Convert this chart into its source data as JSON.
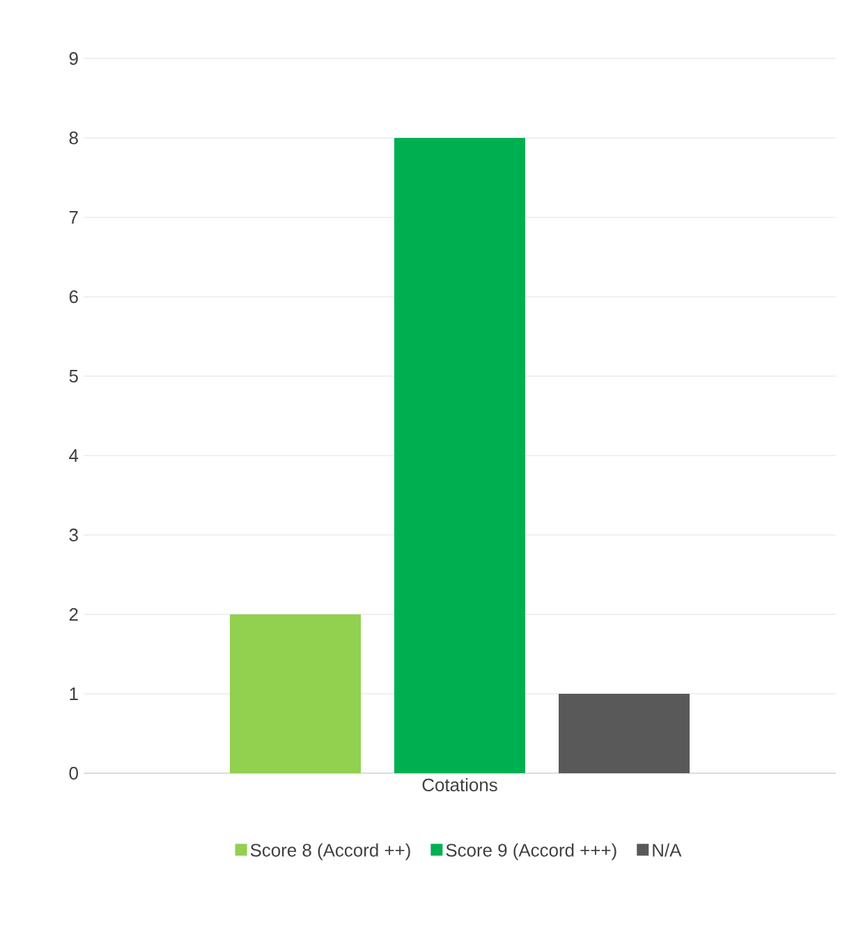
{
  "chart_data": {
    "type": "bar",
    "categories": [
      "Cotations"
    ],
    "series": [
      {
        "name": "Score 8 (Accord ++)",
        "color": "#92d050",
        "values": [
          2
        ]
      },
      {
        "name": "Score 9 (Accord +++)",
        "color": "#00b050",
        "values": [
          8
        ]
      },
      {
        "name": "N/A",
        "color": "#595959",
        "values": [
          1
        ]
      }
    ],
    "ylim": [
      0,
      9
    ],
    "yticks": [
      0,
      1,
      2,
      3,
      4,
      5,
      6,
      7,
      8,
      9
    ],
    "grid": "y",
    "legend": "bottom"
  }
}
